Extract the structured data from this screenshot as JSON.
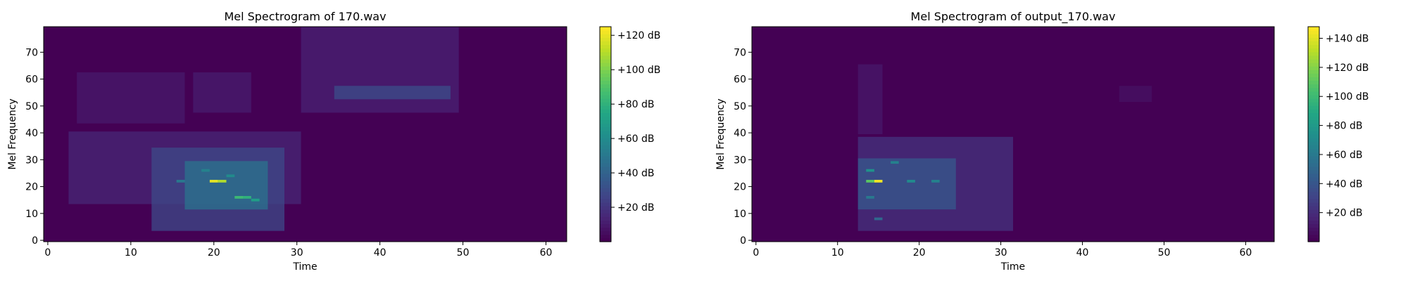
{
  "chart_data": [
    {
      "type": "heatmap",
      "title": "Mel Spectrogram of 170.wav",
      "xlabel": "Time",
      "ylabel": "Mel Frequency",
      "xlim": [
        -0.5,
        62.5
      ],
      "ylim": [
        -0.5,
        79.5
      ],
      "xticks": [
        0,
        10,
        20,
        30,
        40,
        50,
        60
      ],
      "yticks": [
        0,
        10,
        20,
        30,
        40,
        50,
        60,
        70
      ],
      "colorbar": {
        "range": [
          0,
          125
        ],
        "ticks": [
          20,
          40,
          60,
          80,
          100,
          120
        ],
        "tick_labels": [
          "+20 dB",
          "+40 dB",
          "+60 dB",
          "+80 dB",
          "+100 dB",
          "+120 dB"
        ]
      },
      "colormap": "viridis",
      "energy_regions": [
        {
          "t": [
            3,
            30
          ],
          "mel": [
            14,
            40
          ],
          "level": 14
        },
        {
          "t": [
            4,
            16
          ],
          "mel": [
            44,
            62
          ],
          "level": 9
        },
        {
          "t": [
            18,
            24
          ],
          "mel": [
            48,
            62
          ],
          "level": 10
        },
        {
          "t": [
            13,
            28
          ],
          "mel": [
            4,
            34
          ],
          "level": 28
        },
        {
          "t": [
            17,
            26
          ],
          "mel": [
            12,
            29
          ],
          "level": 48
        },
        {
          "t": [
            31,
            49
          ],
          "mel": [
            48,
            79
          ],
          "level": 12
        },
        {
          "t": [
            35,
            48
          ],
          "mel": [
            53,
            57
          ],
          "level": 30
        }
      ],
      "peaks": [
        {
          "t": 20,
          "mel": 22,
          "value": 120
        },
        {
          "t": 21,
          "mel": 22,
          "value": 110
        },
        {
          "t": 23,
          "mel": 16,
          "value": 85
        },
        {
          "t": 24,
          "mel": 16,
          "value": 80
        },
        {
          "t": 25,
          "mel": 15,
          "value": 70
        },
        {
          "t": 22,
          "mel": 24,
          "value": 60
        },
        {
          "t": 19,
          "mel": 26,
          "value": 55
        },
        {
          "t": 16,
          "mel": 22,
          "value": 50
        }
      ]
    },
    {
      "type": "heatmap",
      "title": "Mel Spectrogram of output_170.wav",
      "xlabel": "Time",
      "ylabel": "Mel Frequency",
      "xlim": [
        -0.5,
        63.5
      ],
      "ylim": [
        -0.5,
        79.5
      ],
      "xticks": [
        0,
        10,
        20,
        30,
        40,
        50,
        60
      ],
      "yticks": [
        0,
        10,
        20,
        30,
        40,
        50,
        60,
        70
      ],
      "colorbar": {
        "range": [
          0,
          148
        ],
        "ticks": [
          20,
          40,
          60,
          80,
          100,
          120,
          140
        ],
        "tick_labels": [
          "+20 dB",
          "+40 dB",
          "+60 dB",
          "+80 dB",
          "+100 dB",
          "+120 dB",
          "+140 dB"
        ]
      },
      "colormap": "viridis",
      "energy_regions": [
        {
          "t": [
            13,
            31
          ],
          "mel": [
            4,
            38
          ],
          "level": 22
        },
        {
          "t": [
            13,
            24
          ],
          "mel": [
            12,
            30
          ],
          "level": 42
        },
        {
          "t": [
            13,
            15
          ],
          "mel": [
            40,
            65
          ],
          "level": 10
        },
        {
          "t": [
            45,
            48
          ],
          "mel": [
            52,
            57
          ],
          "level": 7
        }
      ],
      "peaks": [
        {
          "t": 15,
          "mel": 22,
          "value": 145
        },
        {
          "t": 14,
          "mel": 22,
          "value": 110
        },
        {
          "t": 14,
          "mel": 26,
          "value": 75
        },
        {
          "t": 17,
          "mel": 29,
          "value": 65
        },
        {
          "t": 19,
          "mel": 22,
          "value": 70
        },
        {
          "t": 22,
          "mel": 22,
          "value": 65
        },
        {
          "t": 14,
          "mel": 16,
          "value": 60
        },
        {
          "t": 15,
          "mel": 8,
          "value": 50
        }
      ]
    }
  ]
}
